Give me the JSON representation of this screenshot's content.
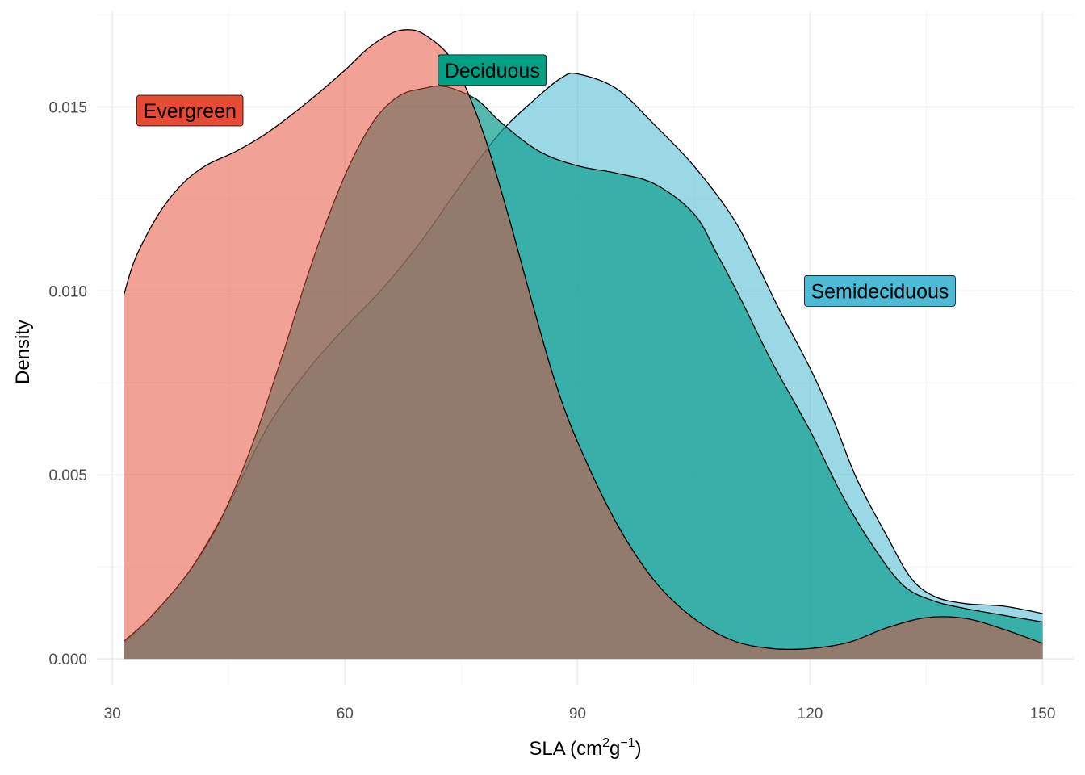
{
  "chart_data": {
    "type": "area",
    "subtype": "density",
    "title": "",
    "xlabel": {
      "base": "SLA (cm",
      "sup1": "2",
      "mid": "g",
      "sup2": "−1",
      "end": ")"
    },
    "ylabel": "Density",
    "xlim": [
      28,
      154
    ],
    "ylim": [
      -0.0007,
      0.0176
    ],
    "x_ticks": [
      30,
      60,
      90,
      120,
      150
    ],
    "x_tick_labels": [
      "30",
      "60",
      "90",
      "120",
      "150"
    ],
    "y_ticks": [
      0,
      0.005,
      0.01,
      0.015
    ],
    "y_tick_labels": [
      "0.000",
      "0.005",
      "0.010",
      "0.015"
    ],
    "grid": true,
    "legend": "none",
    "series": [
      {
        "name": "Semideciduous",
        "label": "Semideciduous",
        "label_at": {
          "x": 129,
          "y": 0.01
        },
        "fill": "#48B8D0",
        "label_fill": "#4DBBD5",
        "fill_opacity": 0.55,
        "stroke": "#000000",
        "points": [
          [
            31.5,
            0.00043
          ],
          [
            35,
            0.00115
          ],
          [
            40,
            0.0024
          ],
          [
            45,
            0.0042
          ],
          [
            50,
            0.0063
          ],
          [
            55,
            0.0078
          ],
          [
            60,
            0.009
          ],
          [
            65,
            0.0101
          ],
          [
            70,
            0.0114
          ],
          [
            75,
            0.0129
          ],
          [
            80,
            0.0143
          ],
          [
            85,
            0.0153
          ],
          [
            88,
            0.0158
          ],
          [
            90,
            0.0159
          ],
          [
            95,
            0.0155
          ],
          [
            100,
            0.0145
          ],
          [
            105,
            0.0134
          ],
          [
            110,
            0.012
          ],
          [
            113,
            0.0108
          ],
          [
            116,
            0.0095
          ],
          [
            120,
            0.0079
          ],
          [
            123,
            0.0065
          ],
          [
            126,
            0.0049
          ],
          [
            130,
            0.0033
          ],
          [
            133,
            0.0022
          ],
          [
            136,
            0.0017
          ],
          [
            140,
            0.0015
          ],
          [
            145,
            0.00143
          ],
          [
            150,
            0.00123
          ]
        ]
      },
      {
        "name": "Deciduous",
        "label": "Deciduous",
        "label_at": {
          "x": 79,
          "y": 0.016
        },
        "fill": "#12A090",
        "label_fill": "#00A087",
        "fill_opacity": 0.72,
        "stroke": "#000000",
        "points": [
          [
            31.5,
            0.00048
          ],
          [
            35,
            0.00115
          ],
          [
            40,
            0.0024
          ],
          [
            44,
            0.0038
          ],
          [
            48,
            0.0058
          ],
          [
            52,
            0.0083
          ],
          [
            55,
            0.0103
          ],
          [
            58,
            0.0121
          ],
          [
            61,
            0.0136
          ],
          [
            64,
            0.0147
          ],
          [
            67,
            0.0153
          ],
          [
            70,
            0.0155
          ],
          [
            73,
            0.01555
          ],
          [
            77,
            0.0152
          ],
          [
            80,
            0.0146
          ],
          [
            85,
            0.0138
          ],
          [
            90,
            0.0134
          ],
          [
            95,
            0.0132
          ],
          [
            100,
            0.0129
          ],
          [
            105,
            0.0121
          ],
          [
            108,
            0.011
          ],
          [
            111,
            0.0098
          ],
          [
            115,
            0.0081
          ],
          [
            120,
            0.0062
          ],
          [
            124,
            0.0045
          ],
          [
            128,
            0.0031
          ],
          [
            132,
            0.002
          ],
          [
            136,
            0.00157
          ],
          [
            140,
            0.00137
          ],
          [
            145,
            0.00118
          ],
          [
            150,
            0.001
          ]
        ]
      },
      {
        "name": "Evergreen",
        "label": "Evergreen",
        "label_at": {
          "x": 40,
          "y": 0.0149
        },
        "fill": "#E64B35",
        "label_fill": "#E64B35",
        "fill_opacity": 0.52,
        "stroke": "#000000",
        "points": [
          [
            31.5,
            0.0099
          ],
          [
            33,
            0.0109
          ],
          [
            36,
            0.0121
          ],
          [
            39,
            0.0129
          ],
          [
            42,
            0.0134
          ],
          [
            46,
            0.0138
          ],
          [
            50,
            0.0143
          ],
          [
            55,
            0.0151
          ],
          [
            60,
            0.016
          ],
          [
            63,
            0.0166
          ],
          [
            66,
            0.017
          ],
          [
            68,
            0.0171
          ],
          [
            70,
            0.017
          ],
          [
            73,
            0.0165
          ],
          [
            75,
            0.0158
          ],
          [
            78,
            0.0142
          ],
          [
            81,
            0.0121
          ],
          [
            84,
            0.0098
          ],
          [
            87,
            0.0076
          ],
          [
            90,
            0.0059
          ],
          [
            95,
            0.0037
          ],
          [
            100,
            0.0021
          ],
          [
            105,
            0.0011
          ],
          [
            110,
            0.0005
          ],
          [
            115,
            0.00028
          ],
          [
            120,
            0.00028
          ],
          [
            125,
            0.00045
          ],
          [
            130,
            0.00085
          ],
          [
            135,
            0.00112
          ],
          [
            140,
            0.0011
          ],
          [
            145,
            0.0008
          ],
          [
            150,
            0.00042
          ]
        ]
      }
    ]
  }
}
